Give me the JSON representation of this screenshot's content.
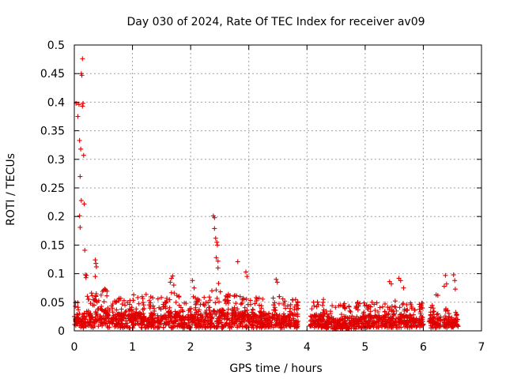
{
  "chart_data": {
    "type": "scatter",
    "title": "Day 030 of 2024, Rate Of TEC Index for receiver av09",
    "xlabel": "GPS time / hours",
    "ylabel": "ROTI / TECUs",
    "xlim": [
      0,
      7
    ],
    "ylim": [
      0,
      0.5
    ],
    "xticks": [
      "0",
      "1",
      "2",
      "3",
      "4",
      "5",
      "6",
      "7"
    ],
    "yticks": [
      "0",
      "0.05",
      "0.1",
      "0.15",
      "0.2",
      "0.25",
      "0.3",
      "0.35",
      "0.4",
      "0.45",
      "0.5"
    ],
    "grid": true,
    "marker": "+",
    "series": [
      {
        "name": "ROTI",
        "color": "#e00000",
        "points": [
          [
            0.03,
            0.398
          ],
          [
            0.06,
            0.375
          ],
          [
            0.08,
            0.396
          ],
          [
            0.09,
            0.333
          ],
          [
            0.1,
            0.27
          ],
          [
            0.11,
            0.318
          ],
          [
            0.12,
            0.228
          ],
          [
            0.12,
            0.45
          ],
          [
            0.13,
            0.447
          ],
          [
            0.14,
            0.476
          ],
          [
            0.14,
            0.393
          ],
          [
            0.15,
            0.398
          ],
          [
            0.16,
            0.307
          ],
          [
            0.17,
            0.222
          ],
          [
            0.09,
            0.201
          ],
          [
            0.1,
            0.181
          ],
          [
            0.18,
            0.141
          ],
          [
            0.19,
            0.098
          ],
          [
            0.2,
            0.093
          ],
          [
            0.21,
            0.097
          ],
          [
            0.36,
            0.124
          ],
          [
            0.37,
            0.118
          ],
          [
            0.38,
            0.112
          ],
          [
            0.36,
            0.095
          ],
          [
            1.65,
            0.085
          ],
          [
            1.67,
            0.092
          ],
          [
            1.69,
            0.096
          ],
          [
            1.71,
            0.08
          ],
          [
            2.03,
            0.088
          ],
          [
            2.06,
            0.075
          ],
          [
            2.39,
            0.201
          ],
          [
            2.41,
            0.198
          ],
          [
            2.41,
            0.179
          ],
          [
            2.43,
            0.162
          ],
          [
            2.45,
            0.155
          ],
          [
            2.46,
            0.15
          ],
          [
            2.44,
            0.128
          ],
          [
            2.47,
            0.122
          ],
          [
            2.47,
            0.11
          ],
          [
            2.48,
            0.083
          ],
          [
            2.81,
            0.121
          ],
          [
            2.95,
            0.103
          ],
          [
            2.97,
            0.095
          ],
          [
            3.47,
            0.09
          ],
          [
            3.49,
            0.085
          ],
          [
            5.42,
            0.086
          ],
          [
            5.45,
            0.082
          ],
          [
            5.58,
            0.092
          ],
          [
            5.61,
            0.088
          ],
          [
            5.66,
            0.075
          ],
          [
            6.22,
            0.063
          ],
          [
            6.25,
            0.062
          ],
          [
            6.38,
            0.097
          ],
          [
            6.4,
            0.082
          ],
          [
            6.36,
            0.078
          ],
          [
            6.52,
            0.098
          ],
          [
            6.54,
            0.088
          ],
          [
            6.55,
            0.073
          ]
        ],
        "bands": [
          [
            0.0,
            0.1,
            0.005,
            0.05
          ],
          [
            0.1,
            0.2,
            0.005,
            0.045
          ],
          [
            0.2,
            0.4,
            0.005,
            0.07
          ],
          [
            0.4,
            0.6,
            0.005,
            0.08
          ],
          [
            0.6,
            1.0,
            0.005,
            0.06
          ],
          [
            1.0,
            1.3,
            0.005,
            0.065
          ],
          [
            1.3,
            1.6,
            0.005,
            0.06
          ],
          [
            1.6,
            1.8,
            0.005,
            0.07
          ],
          [
            1.8,
            2.0,
            0.005,
            0.05
          ],
          [
            2.0,
            2.3,
            0.005,
            0.06
          ],
          [
            2.3,
            2.6,
            0.005,
            0.075
          ],
          [
            2.6,
            2.9,
            0.005,
            0.065
          ],
          [
            2.9,
            3.2,
            0.005,
            0.06
          ],
          [
            3.2,
            3.5,
            0.005,
            0.06
          ],
          [
            3.5,
            3.85,
            0.005,
            0.06
          ],
          [
            4.05,
            4.3,
            0.005,
            0.055
          ],
          [
            4.3,
            4.6,
            0.003,
            0.045
          ],
          [
            4.6,
            4.9,
            0.003,
            0.05
          ],
          [
            4.9,
            5.2,
            0.005,
            0.055
          ],
          [
            5.2,
            5.5,
            0.005,
            0.05
          ],
          [
            5.5,
            5.8,
            0.005,
            0.055
          ],
          [
            5.8,
            6.0,
            0.005,
            0.05
          ],
          [
            6.1,
            6.3,
            0.005,
            0.045
          ],
          [
            6.35,
            6.6,
            0.005,
            0.04
          ]
        ]
      }
    ]
  }
}
